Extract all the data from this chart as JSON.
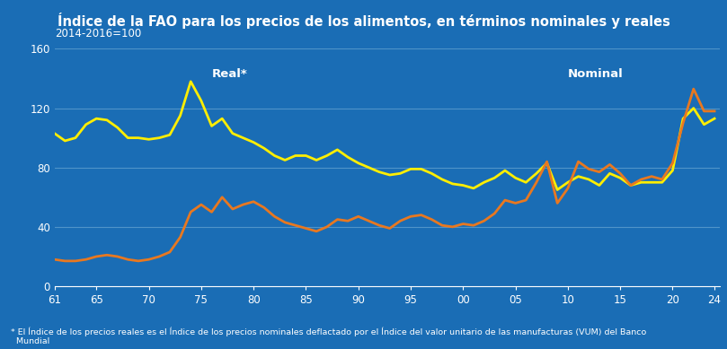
{
  "title": "Índice de la FAO para los precios de los alimentos, en términos nominales y reales",
  "subtitle": "2014-2016=100",
  "footnote": "* El Índice de los precios reales es el Índice de los precios nominales deflactado por el Índice del valor unitario de las manufacturas (VUM) del Banco\n  Mundial",
  "title_bg": "#1b3d6e",
  "plot_bg": "#1a6db5",
  "title_color": "#ffffff",
  "label_color": "#ffffff",
  "grid_color": "#5599cc",
  "ylim": [
    0,
    160
  ],
  "yticks": [
    0,
    40,
    80,
    120,
    160
  ],
  "xtick_labels": [
    "61",
    "65",
    "70",
    "75",
    "80",
    "85",
    "90",
    "95",
    "00",
    "05",
    "10",
    "15",
    "20",
    "24"
  ],
  "xtick_positions": [
    1961,
    1965,
    1970,
    1975,
    1980,
    1985,
    1990,
    1995,
    2000,
    2005,
    2010,
    2015,
    2020,
    2024
  ],
  "real_label": "Real*",
  "nominal_label": "Nominal",
  "real_color": "#ffee00",
  "nominal_color": "#e87820",
  "real_data_x": [
    1961,
    1962,
    1963,
    1964,
    1965,
    1966,
    1967,
    1968,
    1969,
    1970,
    1971,
    1972,
    1973,
    1974,
    1975,
    1976,
    1977,
    1978,
    1979,
    1980,
    1981,
    1982,
    1983,
    1984,
    1985,
    1986,
    1987,
    1988,
    1989,
    1990,
    1991,
    1992,
    1993,
    1994,
    1995,
    1996,
    1997,
    1998,
    1999,
    2000,
    2001,
    2002,
    2003,
    2004,
    2005,
    2006,
    2007,
    2008,
    2009,
    2010,
    2011,
    2012,
    2013,
    2014,
    2015,
    2016,
    2017,
    2018,
    2019,
    2020,
    2021,
    2022,
    2023,
    2024
  ],
  "real_data_y": [
    103,
    98,
    100,
    109,
    113,
    112,
    107,
    100,
    100,
    99,
    100,
    102,
    115,
    138,
    125,
    108,
    113,
    103,
    100,
    97,
    93,
    88,
    85,
    88,
    88,
    85,
    88,
    92,
    87,
    83,
    80,
    77,
    75,
    76,
    79,
    79,
    76,
    72,
    69,
    68,
    66,
    70,
    73,
    78,
    73,
    70,
    76,
    83,
    65,
    70,
    74,
    72,
    68,
    76,
    73,
    68,
    70,
    70,
    70,
    78,
    113,
    120,
    109,
    113
  ],
  "nominal_data_x": [
    1961,
    1962,
    1963,
    1964,
    1965,
    1966,
    1967,
    1968,
    1969,
    1970,
    1971,
    1972,
    1973,
    1974,
    1975,
    1976,
    1977,
    1978,
    1979,
    1980,
    1981,
    1982,
    1983,
    1984,
    1985,
    1986,
    1987,
    1988,
    1989,
    1990,
    1991,
    1992,
    1993,
    1994,
    1995,
    1996,
    1997,
    1998,
    1999,
    2000,
    2001,
    2002,
    2003,
    2004,
    2005,
    2006,
    2007,
    2008,
    2009,
    2010,
    2011,
    2012,
    2013,
    2014,
    2015,
    2016,
    2017,
    2018,
    2019,
    2020,
    2021,
    2022,
    2023,
    2024
  ],
  "nominal_data_y": [
    18,
    17,
    17,
    18,
    20,
    21,
    20,
    18,
    17,
    18,
    20,
    23,
    33,
    50,
    55,
    50,
    60,
    52,
    55,
    57,
    53,
    47,
    43,
    41,
    39,
    37,
    40,
    45,
    44,
    47,
    44,
    41,
    39,
    44,
    47,
    48,
    45,
    41,
    40,
    42,
    41,
    44,
    49,
    58,
    56,
    58,
    70,
    84,
    56,
    66,
    84,
    79,
    77,
    82,
    76,
    68,
    72,
    74,
    72,
    83,
    110,
    133,
    118,
    118
  ]
}
